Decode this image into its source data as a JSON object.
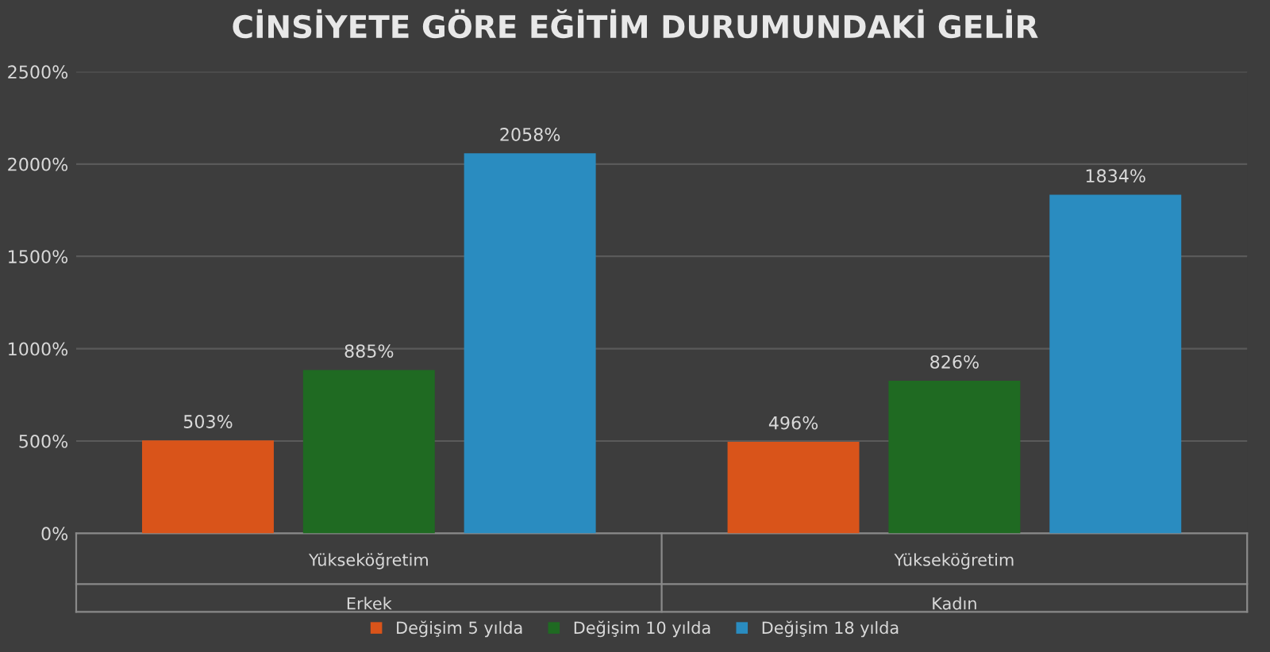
{
  "chart_data": {
    "type": "bar",
    "title": "CİNSİYETE GÖRE EĞİTİM DURUMUNDAKİ GELİR",
    "categories": [
      "Yükseköğretim\nErkek",
      "Yükseköğretim\nKadın"
    ],
    "series": [
      {
        "name": "Değişim 5 yılda",
        "color": "#d9541a",
        "values": [
          503,
          496
        ],
        "value_labels": [
          "503%",
          "496%"
        ]
      },
      {
        "name": "Değişim 10 yılda",
        "color": "#1f6a22",
        "values": [
          885,
          826
        ],
        "value_labels": [
          "885%",
          "826%"
        ]
      },
      {
        "name": "Değişim 18 yılda",
        "color": "#2a8cc0",
        "values": [
          2058,
          1834
        ],
        "value_labels": [
          "2058%",
          "1834%"
        ]
      }
    ],
    "ylim": [
      0,
      2500
    ],
    "yticks": [
      {
        "value": 0,
        "label": "0%"
      },
      {
        "value": 500,
        "label": "500%"
      },
      {
        "value": 1000,
        "label": "1000%"
      },
      {
        "value": 1500,
        "label": "1500%"
      },
      {
        "value": 2000,
        "label": "2000%"
      },
      {
        "value": 2500,
        "label": "2500%"
      }
    ],
    "grid": "y",
    "legend": "bottom"
  }
}
